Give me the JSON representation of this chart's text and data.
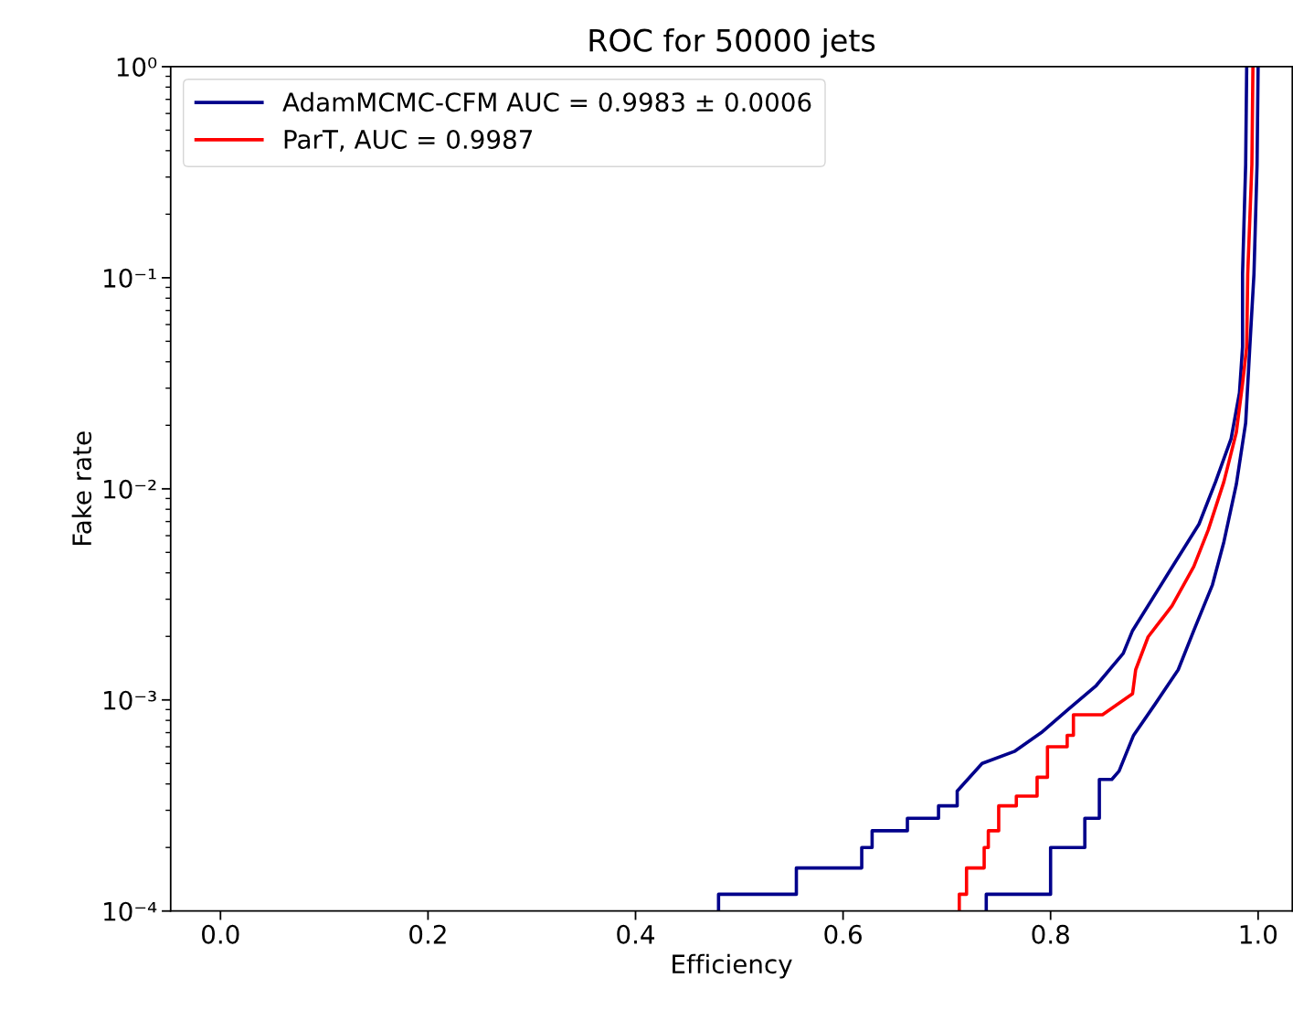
{
  "chart_data": {
    "type": "line",
    "title": "ROC for 50000 jets",
    "xlabel": "Efficiency",
    "ylabel": "Fake rate",
    "log": "y",
    "legend": "top left",
    "grid": false,
    "marker": "none",
    "line_style": "solid",
    "xlim": [
      -0.048,
      1.033
    ],
    "xticks": [
      {
        "value": 0,
        "label": "0.0"
      },
      0.2,
      0.4,
      0.6,
      0.8,
      {
        "value": 1,
        "label": "1.0"
      }
    ],
    "ylim": [
      0.0001,
      1
    ],
    "yticks": [
      {
        "value": 0.0001,
        "label": "10⁻⁴"
      },
      {
        "value": 0.001,
        "label": "10⁻³"
      },
      {
        "value": 0.01,
        "label": "10⁻²"
      },
      {
        "value": 0.1,
        "label": "10⁻¹"
      },
      {
        "value": 1,
        "label": "10⁰"
      }
    ],
    "series": [
      {
        "name": "AdamMCMC-CFM AUC = 0.9983 ± 0.0006",
        "color": "#00008b",
        "x": [
          0.48,
          0.48,
          0.555,
          0.555,
          0.618,
          0.618,
          0.628,
          0.628,
          0.662,
          0.662,
          0.692,
          0.692,
          0.71,
          0.71,
          0.734,
          0.765,
          0.791,
          0.818,
          0.844,
          0.87,
          0.879,
          0.912,
          0.943,
          0.959,
          0.974,
          0.982,
          0.985,
          0.985,
          0.988,
          0.989
        ],
        "values": [
          0.0001,
          0.00012,
          0.00012,
          0.00016,
          0.00016,
          0.0002,
          0.0002,
          0.00024,
          0.00024,
          0.000275,
          0.000275,
          0.000315,
          0.000315,
          0.00037,
          0.0005,
          0.00057,
          0.0007,
          0.00091,
          0.00117,
          0.00166,
          0.00213,
          0.00388,
          0.0068,
          0.0108,
          0.0173,
          0.0285,
          0.047,
          0.104,
          0.344,
          1.0
        ]
      },
      {
        "color": "#00008b",
        "x": [
          0.738,
          0.738,
          0.8,
          0.8,
          0.833,
          0.833,
          0.847,
          0.847,
          0.859,
          0.866,
          0.88,
          0.901,
          0.923,
          0.938,
          0.956,
          0.967,
          0.979,
          0.988,
          0.992,
          0.996,
          0.999,
          1.0
        ],
        "values": [
          0.0001,
          0.00012,
          0.00012,
          0.0002,
          0.0002,
          0.000275,
          0.000275,
          0.00042,
          0.00042,
          0.00046,
          0.00068,
          0.00096,
          0.00139,
          0.00213,
          0.00351,
          0.0056,
          0.0105,
          0.0205,
          0.047,
          0.104,
          0.344,
          1.0
        ]
      },
      {
        "name": "ParT, AUC = 0.9987",
        "color": "#ff0000",
        "x": [
          0.712,
          0.712,
          0.719,
          0.719,
          0.736,
          0.736,
          0.74,
          0.74,
          0.75,
          0.75,
          0.767,
          0.767,
          0.787,
          0.787,
          0.797,
          0.797,
          0.816,
          0.816,
          0.822,
          0.822,
          0.85,
          0.879,
          0.882,
          0.894,
          0.917,
          0.938,
          0.952,
          0.967,
          0.979,
          0.985,
          0.989,
          0.99,
          0.994,
          0.995
        ],
        "values": [
          0.0001,
          0.00012,
          0.00012,
          0.00016,
          0.00016,
          0.0002,
          0.0002,
          0.00024,
          0.00024,
          0.000315,
          0.000315,
          0.00035,
          0.00035,
          0.00043,
          0.00043,
          0.0006,
          0.0006,
          0.00068,
          0.00068,
          0.00085,
          0.00085,
          0.00107,
          0.00139,
          0.00199,
          0.00279,
          0.00428,
          0.0064,
          0.0108,
          0.0185,
          0.0315,
          0.047,
          0.104,
          0.344,
          1.0
        ]
      }
    ]
  }
}
